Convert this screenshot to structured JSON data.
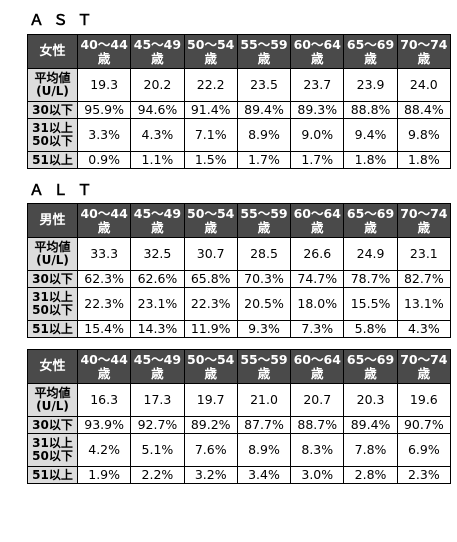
{
  "ages": [
    "40〜44\n歳",
    "45〜49\n歳",
    "50〜54\n歳",
    "55〜59\n歳",
    "60〜64\n歳",
    "65〜69\n歳",
    "70〜74\n歳"
  ],
  "ast": {
    "title": "ＡＳＴ",
    "table": {
      "gender": "女性",
      "rows": [
        {
          "label": "平均値\n(U/L)",
          "values": [
            "19.3",
            "20.2",
            "22.2",
            "23.5",
            "23.7",
            "23.9",
            "24.0"
          ]
        },
        {
          "label": "30以下",
          "values": [
            "95.9%",
            "94.6%",
            "91.4%",
            "89.4%",
            "89.3%",
            "88.8%",
            "88.4%"
          ]
        },
        {
          "label": "31以上\n50以下",
          "values": [
            "3.3%",
            "4.3%",
            "7.1%",
            "8.9%",
            "9.0%",
            "9.4%",
            "9.8%"
          ]
        },
        {
          "label": "51以上",
          "values": [
            "0.9%",
            "1.1%",
            "1.5%",
            "1.7%",
            "1.7%",
            "1.8%",
            "1.8%"
          ]
        }
      ]
    }
  },
  "alt": {
    "title": "ＡＬＴ",
    "male": {
      "gender": "男性",
      "rows": [
        {
          "label": "平均値\n(U/L)",
          "values": [
            "33.3",
            "32.5",
            "30.7",
            "28.5",
            "26.6",
            "24.9",
            "23.1"
          ]
        },
        {
          "label": "30以下",
          "values": [
            "62.3%",
            "62.6%",
            "65.8%",
            "70.3%",
            "74.7%",
            "78.7%",
            "82.7%"
          ]
        },
        {
          "label": "31以上\n50以下",
          "values": [
            "22.3%",
            "23.1%",
            "22.3%",
            "20.5%",
            "18.0%",
            "15.5%",
            "13.1%"
          ]
        },
        {
          "label": "51以上",
          "values": [
            "15.4%",
            "14.3%",
            "11.9%",
            "9.3%",
            "7.3%",
            "5.8%",
            "4.3%"
          ]
        }
      ]
    },
    "female": {
      "gender": "女性",
      "rows": [
        {
          "label": "平均値\n(U/L)",
          "values": [
            "16.3",
            "17.3",
            "19.7",
            "21.0",
            "20.7",
            "20.3",
            "19.6"
          ]
        },
        {
          "label": "30以下",
          "values": [
            "93.9%",
            "92.7%",
            "89.2%",
            "87.7%",
            "88.7%",
            "89.4%",
            "90.7%"
          ]
        },
        {
          "label": "31以上\n50以下",
          "values": [
            "4.2%",
            "5.1%",
            "7.6%",
            "8.9%",
            "8.3%",
            "7.8%",
            "6.9%"
          ]
        },
        {
          "label": "51以上",
          "values": [
            "1.9%",
            "2.2%",
            "3.2%",
            "3.4%",
            "3.0%",
            "2.8%",
            "2.3%"
          ]
        }
      ]
    }
  }
}
